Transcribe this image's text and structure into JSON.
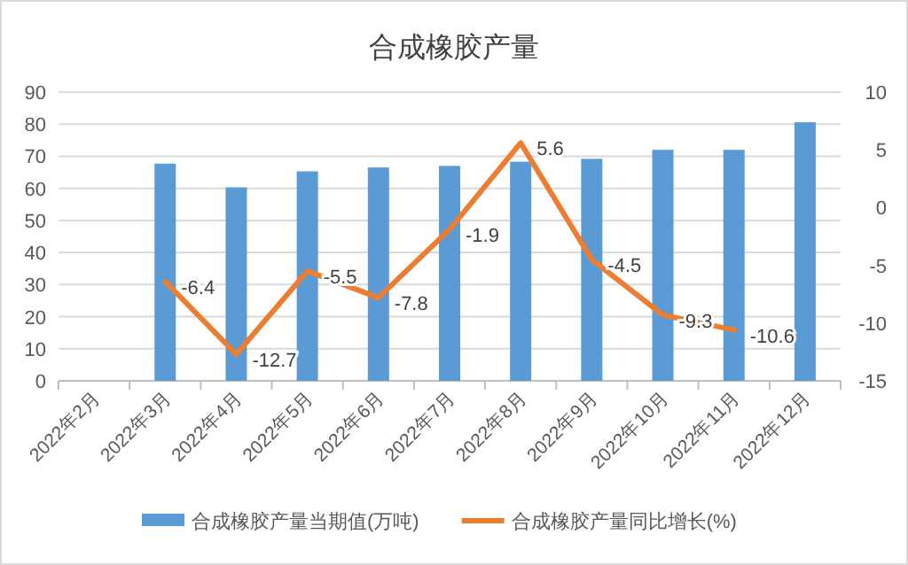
{
  "chart_data": {
    "type": "bar",
    "title": "合成橡胶产量",
    "categories": [
      "2022年2月",
      "2022年3月",
      "2022年4月",
      "2022年5月",
      "2022年6月",
      "2022年7月",
      "2022年8月",
      "2022年9月",
      "2022年10月",
      "2022年11月",
      "2022年12月"
    ],
    "series": [
      {
        "name": "合成橡胶产量当期值(万吨)",
        "color": "#5b9bd5",
        "values": [
          null,
          67.7,
          60.3,
          65.3,
          66.5,
          67,
          68.3,
          69.2,
          72,
          72,
          80.6
        ]
      },
      {
        "name": "合成橡胶产量同比增长(%)",
        "type": "line",
        "axis": "y2",
        "color": "#ed7d31",
        "data_labels": true,
        "values": [
          null,
          -6.4,
          -12.7,
          -5.5,
          -7.8,
          -1.9,
          5.6,
          -4.5,
          -9.3,
          -10.6,
          null
        ]
      }
    ],
    "ylim": [
      0,
      90
    ],
    "yticks": [
      0,
      10,
      20,
      30,
      40,
      50,
      60,
      70,
      80,
      90
    ],
    "y2lim": [
      -15,
      10
    ],
    "y2ticks": [
      -15,
      -10,
      -5,
      0,
      5,
      10
    ],
    "grid": "y",
    "legend": "bottom",
    "marker": "none"
  }
}
